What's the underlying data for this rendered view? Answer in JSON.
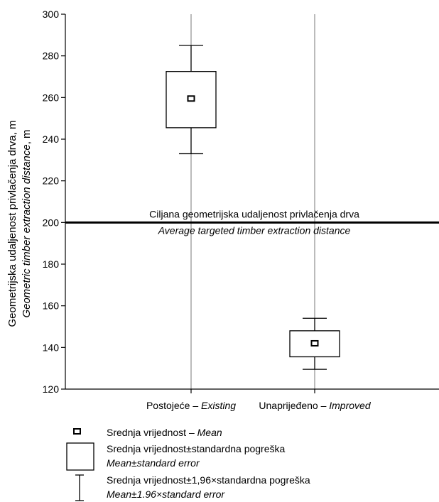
{
  "chart_data": {
    "type": "box",
    "categories": [
      {
        "prefix": "Postojeće – ",
        "italic": "Existing"
      },
      {
        "prefix": "Unaprijeđeno – ",
        "italic": "Improved"
      }
    ],
    "series": [
      {
        "category": "Existing",
        "mean": 259.5,
        "se_low": 245.5,
        "se_high": 272.5,
        "ci_low": 233,
        "ci_high": 285
      },
      {
        "category": "Improved",
        "mean": 142,
        "se_low": 135.5,
        "se_high": 148,
        "ci_low": 129.5,
        "ci_high": 154
      }
    ],
    "ylabel": "Geometrijska udaljenost privlačenja drva, m",
    "ylabel_italic": "Geometric timber extraction distance",
    "ylabel_suffix": ", m",
    "ylim": [
      120,
      300
    ],
    "yticks": [
      120,
      140,
      160,
      180,
      200,
      220,
      240,
      260,
      280,
      300
    ],
    "grid": "vertical-at-categories",
    "reference_line": {
      "value": 200,
      "label": "Ciljana geometrijska udaljenost privlačenja drva",
      "label_italic": "Average targeted timber extraction distance"
    },
    "legend": {
      "placement": "bottom-left",
      "mean": {
        "label": "Srednja vrijednost – ",
        "italic": "Mean"
      },
      "se": {
        "label": "Srednja vrijednost±standardna pogreška",
        "italic": "Mean±standard error"
      },
      "ci": {
        "label": "Srednja vrijednost±1,96×standardna pogreška",
        "italic": "Mean±1.96×standard error"
      }
    }
  }
}
